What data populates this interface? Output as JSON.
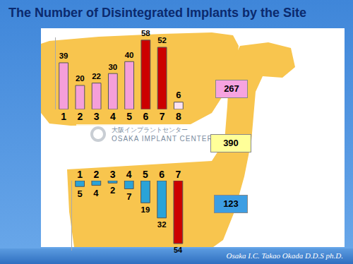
{
  "title": "The Number of Disintegrated Implants by the Site",
  "footer": "Osaka I.C. Takao Okada D.D.S ph.D.",
  "watermark": {
    "japanese": "大阪インプラントセンター",
    "english": "OSAKA IMPLANT CENTER"
  },
  "grand_total": 390,
  "chart_data": [
    {
      "type": "bar",
      "categories": [
        "1",
        "2",
        "3",
        "4",
        "5",
        "6",
        "7",
        "8"
      ],
      "values": [
        39,
        20,
        22,
        30,
        40,
        58,
        52,
        6
      ],
      "colors": [
        "#f59fd9",
        "#f59fd9",
        "#f59fd9",
        "#f59fd9",
        "#f59fd9",
        "#cc0000",
        "#cc0000",
        "#fde2f2"
      ],
      "ylim": [
        0,
        60
      ],
      "grid": false,
      "data_labels": true,
      "tick_labels": "x",
      "total": 267
    },
    {
      "type": "bar",
      "categories": [
        "1",
        "2",
        "3",
        "4",
        "5",
        "6",
        "7"
      ],
      "values": [
        5,
        4,
        2,
        7,
        19,
        32,
        54
      ],
      "colors": [
        "#2aa3d8",
        "#2aa3d8",
        "#2aa3d8",
        "#2aa3d8",
        "#2aa3d8",
        "#2aa3d8",
        "#cc0000"
      ],
      "ylim": [
        0,
        60
      ],
      "grid": false,
      "data_labels": true,
      "tick_labels": "x",
      "total": 123
    }
  ]
}
